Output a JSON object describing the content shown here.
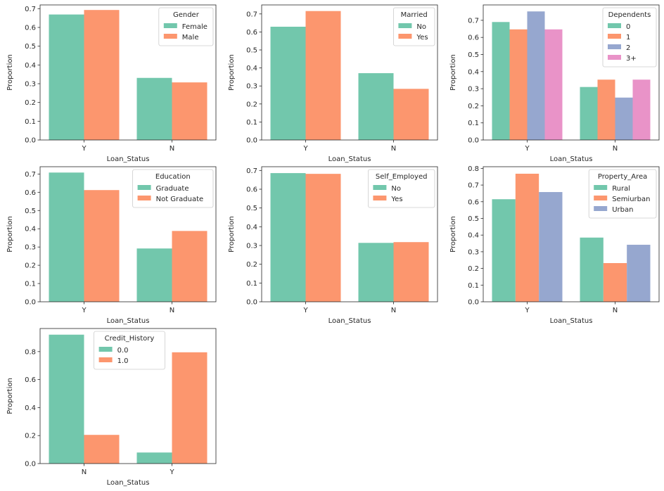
{
  "colors": {
    "palette": [
      "#66c2a5",
      "#fc8d62",
      "#8da0cb",
      "#e78ac3"
    ],
    "axis": "#262626",
    "legend_border": "#cccccc"
  },
  "chart_data": [
    {
      "type": "bar",
      "categories": [
        "Y",
        "N"
      ],
      "xlabel": "Loan_Status",
      "ylabel": "Proportion",
      "ylim": [
        0,
        0.72
      ],
      "yticks": [
        "0.0",
        "0.1",
        "0.2",
        "0.3",
        "0.4",
        "0.5",
        "0.6",
        "0.7"
      ],
      "ytick_values": [
        0,
        0.1,
        0.2,
        0.3,
        0.4,
        0.5,
        0.6,
        0.7
      ],
      "legend_title": "Gender",
      "legend_loc": "upper-right",
      "series": [
        {
          "name": "Female",
          "values": [
            0.669,
            0.331
          ]
        },
        {
          "name": "Male",
          "values": [
            0.693,
            0.307
          ]
        }
      ]
    },
    {
      "type": "bar",
      "categories": [
        "Y",
        "N"
      ],
      "xlabel": "Loan_Status",
      "ylabel": "Proportion",
      "ylim": [
        0,
        0.75
      ],
      "yticks": [
        "0.0",
        "0.1",
        "0.2",
        "0.3",
        "0.4",
        "0.5",
        "0.6",
        "0.7"
      ],
      "ytick_values": [
        0,
        0.1,
        0.2,
        0.3,
        0.4,
        0.5,
        0.6,
        0.7
      ],
      "legend_title": "Married",
      "legend_loc": "upper-right",
      "series": [
        {
          "name": "No",
          "values": [
            0.629,
            0.371
          ]
        },
        {
          "name": "Yes",
          "values": [
            0.716,
            0.284
          ]
        }
      ]
    },
    {
      "type": "bar",
      "categories": [
        "Y",
        "N"
      ],
      "xlabel": "Loan_Status",
      "ylabel": "Proportion",
      "ylim": [
        0,
        0.79
      ],
      "yticks": [
        "0.0",
        "0.1",
        "0.2",
        "0.3",
        "0.4",
        "0.5",
        "0.6",
        "0.7"
      ],
      "ytick_values": [
        0,
        0.1,
        0.2,
        0.3,
        0.4,
        0.5,
        0.6,
        0.7
      ],
      "legend_title": "Dependents",
      "legend_loc": "upper-right",
      "series": [
        {
          "name": "0",
          "values": [
            0.69,
            0.31
          ]
        },
        {
          "name": "1",
          "values": [
            0.647,
            0.353
          ]
        },
        {
          "name": "2",
          "values": [
            0.752,
            0.248
          ]
        },
        {
          "name": "3+",
          "values": [
            0.647,
            0.353
          ]
        }
      ]
    },
    {
      "type": "bar",
      "categories": [
        "Y",
        "N"
      ],
      "xlabel": "Loan_Status",
      "ylabel": "Proportion",
      "ylim": [
        0,
        0.74
      ],
      "yticks": [
        "0.0",
        "0.1",
        "0.2",
        "0.3",
        "0.4",
        "0.5",
        "0.6",
        "0.7"
      ],
      "ytick_values": [
        0,
        0.1,
        0.2,
        0.3,
        0.4,
        0.5,
        0.6,
        0.7
      ],
      "legend_title": "Education",
      "legend_loc": "upper-right",
      "series": [
        {
          "name": "Graduate",
          "values": [
            0.708,
            0.292
          ]
        },
        {
          "name": "Not Graduate",
          "values": [
            0.612,
            0.388
          ]
        }
      ]
    },
    {
      "type": "bar",
      "categories": [
        "Y",
        "N"
      ],
      "xlabel": "Loan_Status",
      "ylabel": "Proportion",
      "ylim": [
        0,
        0.72
      ],
      "yticks": [
        "0.0",
        "0.1",
        "0.2",
        "0.3",
        "0.4",
        "0.5",
        "0.6",
        "0.7"
      ],
      "ytick_values": [
        0,
        0.1,
        0.2,
        0.3,
        0.4,
        0.5,
        0.6,
        0.7
      ],
      "legend_title": "Self_Employed",
      "legend_loc": "upper-right",
      "series": [
        {
          "name": "No",
          "values": [
            0.686,
            0.314
          ]
        },
        {
          "name": "Yes",
          "values": [
            0.682,
            0.318
          ]
        }
      ]
    },
    {
      "type": "bar",
      "categories": [
        "Y",
        "N"
      ],
      "xlabel": "Loan_Status",
      "ylabel": "Proportion",
      "ylim": [
        0,
        0.81
      ],
      "yticks": [
        "0.0",
        "0.1",
        "0.2",
        "0.3",
        "0.4",
        "0.5",
        "0.6",
        "0.7",
        "0.8"
      ],
      "ytick_values": [
        0,
        0.1,
        0.2,
        0.3,
        0.4,
        0.5,
        0.6,
        0.7,
        0.8
      ],
      "legend_title": "Property_Area",
      "legend_loc": "upper-right",
      "series": [
        {
          "name": "Rural",
          "values": [
            0.615,
            0.385
          ]
        },
        {
          "name": "Semiurban",
          "values": [
            0.768,
            0.232
          ]
        },
        {
          "name": "Urban",
          "values": [
            0.658,
            0.342
          ]
        }
      ]
    },
    {
      "type": "bar",
      "categories": [
        "N",
        "Y"
      ],
      "xlabel": "Loan_Status",
      "ylabel": "Proportion",
      "ylim": [
        0,
        0.965
      ],
      "yticks": [
        "0.0",
        "0.2",
        "0.4",
        "0.6",
        "0.8"
      ],
      "ytick_values": [
        0,
        0.2,
        0.4,
        0.6,
        0.8
      ],
      "legend_title": "Credit_History",
      "legend_loc": "upper-center",
      "series": [
        {
          "name": "0.0",
          "values": [
            0.921,
            0.079
          ]
        },
        {
          "name": "1.0",
          "values": [
            0.205,
            0.795
          ]
        }
      ]
    }
  ]
}
